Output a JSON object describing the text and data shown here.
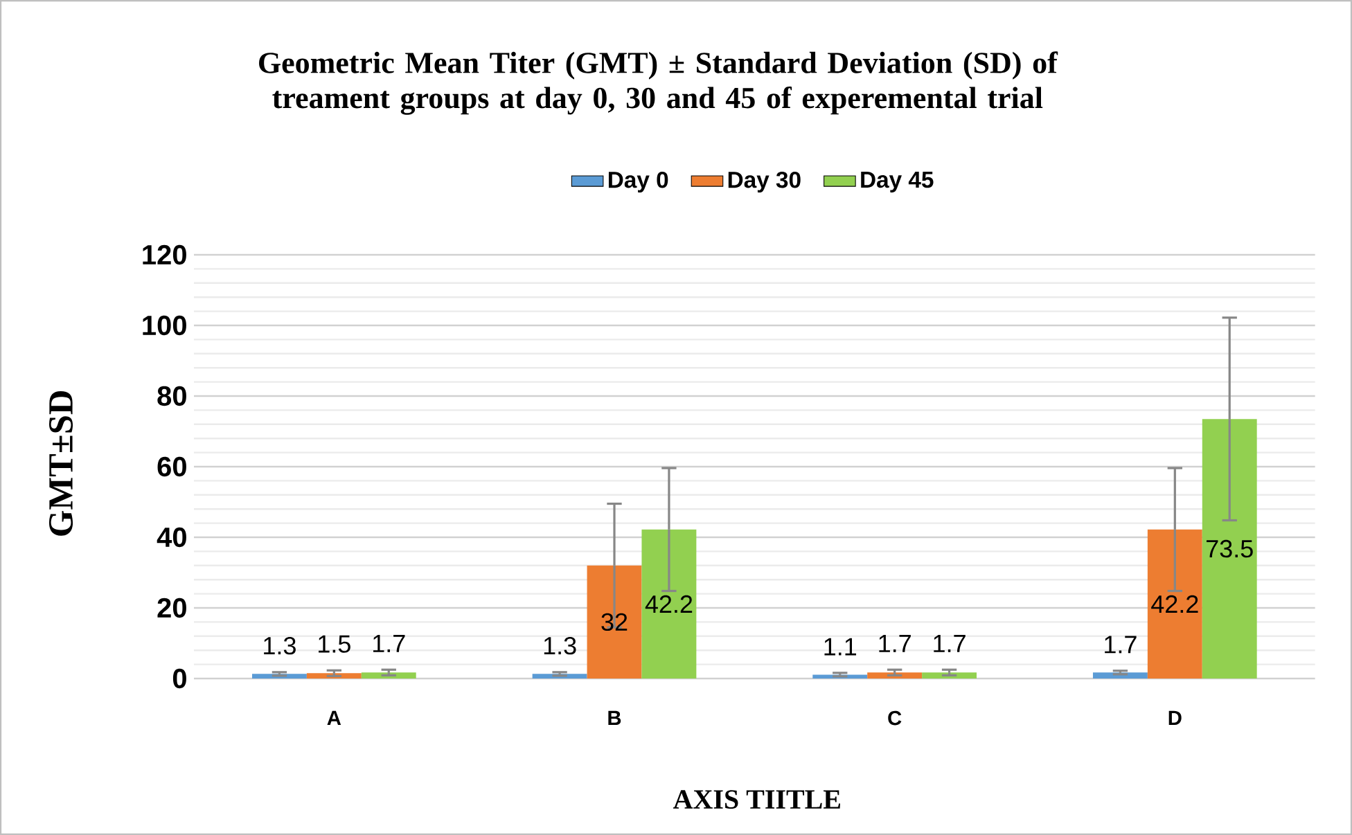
{
  "chart_data": {
    "type": "bar",
    "title": "Geometric Mean Titer (GMT) ± Standard Deviation (SD) of treament groups at day 0, 30 and 45 of experemental trial",
    "xlabel": "AXIS TIITLE",
    "ylabel": "GMT±SD",
    "categories": [
      "A",
      "B",
      "C",
      "D"
    ],
    "series": [
      {
        "name": "Day 0",
        "color": "#5b9bd5",
        "values": [
          1.3,
          1.3,
          1.1,
          1.7
        ],
        "errors": [
          0.5,
          0.5,
          0.5,
          0.5
        ]
      },
      {
        "name": "Day 30",
        "color": "#ed7d31",
        "values": [
          1.5,
          32,
          1.7,
          42.2
        ],
        "errors": [
          0.8,
          17.5,
          0.8,
          17.4
        ]
      },
      {
        "name": "Day 45",
        "color": "#92d050",
        "values": [
          1.7,
          42.2,
          1.7,
          73.5
        ],
        "errors": [
          0.8,
          17.4,
          0.8,
          28.7
        ]
      }
    ],
    "ylim": [
      0,
      120
    ],
    "yticks": [
      0,
      20,
      40,
      60,
      80,
      100,
      120
    ],
    "grid": "y",
    "legend": "top",
    "data_labels": true
  }
}
